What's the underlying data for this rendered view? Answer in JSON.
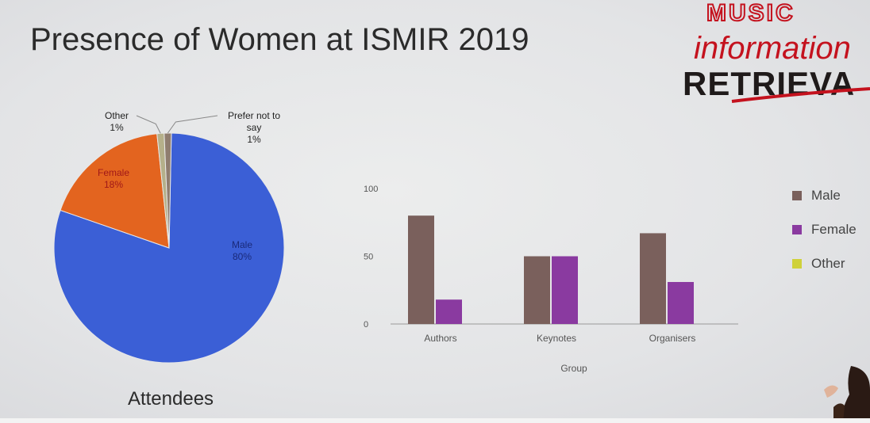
{
  "slide": {
    "title": "Presence of Women at ISMIR 2019",
    "logo": {
      "lines": [
        "MUSIC",
        "information",
        "RETRIEVA"
      ]
    }
  },
  "colors": {
    "male_pie": "#3b5fd6",
    "female_pie": "#e3641f",
    "other_pie": "#b5b08a",
    "prefer_pie": "#8f7d6f",
    "male_bar": "#7a605c",
    "female_bar": "#8a3aa0",
    "other_bar": "#cfd13a",
    "logo_red": "#c4121e"
  },
  "chart_data": [
    {
      "type": "pie",
      "title": "Attendees",
      "slices": [
        {
          "label": "Male",
          "value": 80,
          "display": "80%"
        },
        {
          "label": "Female",
          "value": 18,
          "display": "18%"
        },
        {
          "label": "Other",
          "value": 1,
          "display": "1%"
        },
        {
          "label": "Prefer not to say",
          "value": 1,
          "display": "1%"
        }
      ]
    },
    {
      "type": "bar",
      "categories": [
        "Authors",
        "Keynotes",
        "Organisers"
      ],
      "series": [
        {
          "name": "Male",
          "values": [
            80,
            50,
            67
          ]
        },
        {
          "name": "Female",
          "values": [
            18,
            50,
            31
          ]
        },
        {
          "name": "Other",
          "values": [
            0,
            0,
            0
          ]
        }
      ],
      "xlabel": "Group",
      "ylabel": "",
      "ylim": [
        0,
        100
      ],
      "yticks": [
        0,
        50,
        100
      ],
      "legend_placement": "right"
    }
  ]
}
